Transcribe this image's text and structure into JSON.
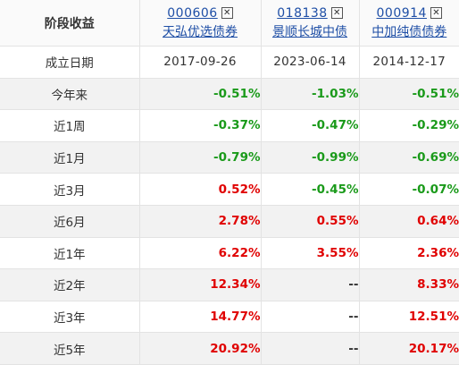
{
  "header_label": "阶段收益",
  "funds": [
    {
      "code": "000606",
      "name": "天弘优选债券"
    },
    {
      "code": "018138",
      "name": "景顺长城中债"
    },
    {
      "code": "000914",
      "name": "中加纯债债券"
    }
  ],
  "close_glyph": "✕",
  "rows": [
    {
      "label": "成立日期",
      "values": [
        "2017-09-26",
        "2023-06-14",
        "2014-12-17"
      ]
    },
    {
      "label": "今年来",
      "values": [
        "-0.51%",
        "-1.03%",
        "-0.51%"
      ]
    },
    {
      "label": "近1周",
      "values": [
        "-0.37%",
        "-0.47%",
        "-0.29%"
      ]
    },
    {
      "label": "近1月",
      "values": [
        "-0.79%",
        "-0.99%",
        "-0.69%"
      ]
    },
    {
      "label": "近3月",
      "values": [
        "0.52%",
        "-0.45%",
        "-0.07%"
      ]
    },
    {
      "label": "近6月",
      "values": [
        "2.78%",
        "0.55%",
        "0.64%"
      ]
    },
    {
      "label": "近1年",
      "values": [
        "6.22%",
        "3.55%",
        "2.36%"
      ]
    },
    {
      "label": "近2年",
      "values": [
        "12.34%",
        "--",
        "8.33%"
      ]
    },
    {
      "label": "近3年",
      "values": [
        "14.77%",
        "--",
        "12.51%"
      ]
    },
    {
      "label": "近5年",
      "values": [
        "20.92%",
        "--",
        "20.17%"
      ]
    }
  ],
  "colors": {
    "positive": "#e00000",
    "negative": "#1a9a1a",
    "link": "#1f4fa6"
  }
}
